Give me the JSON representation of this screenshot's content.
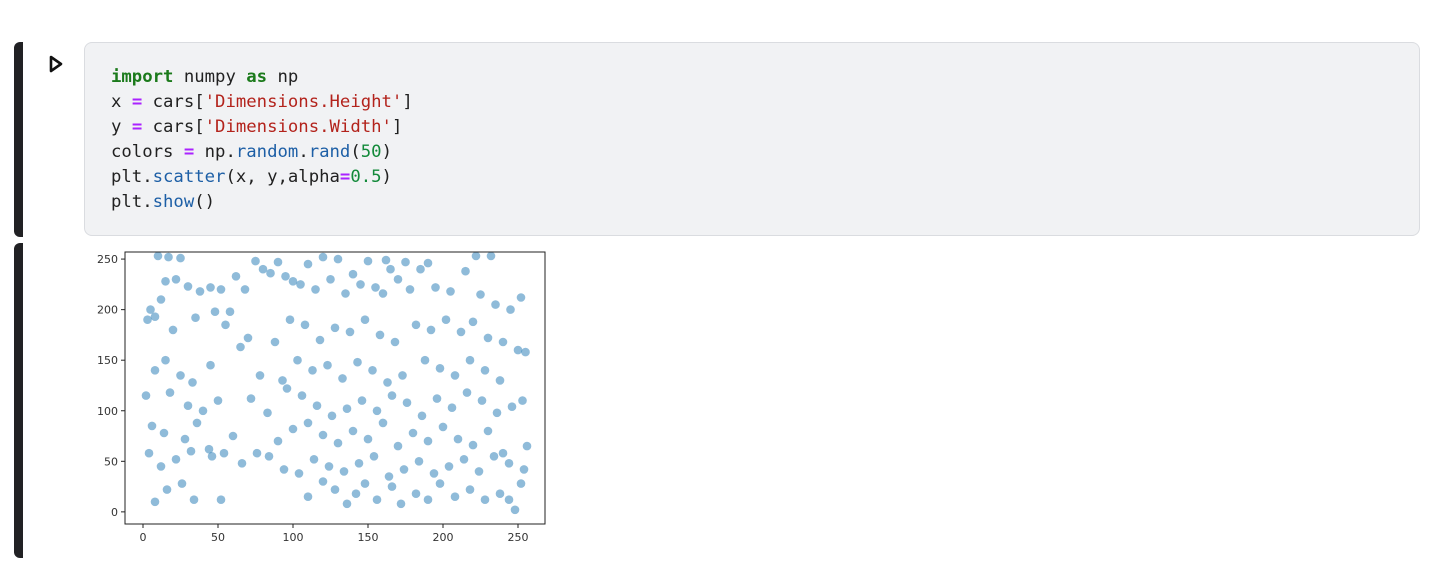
{
  "code_cell": {
    "run_icon": "play-triangle-icon",
    "lines": [
      {
        "tokens": [
          {
            "t": "import",
            "k": "kw"
          },
          {
            "t": " numpy ",
            "k": ""
          },
          {
            "t": "as",
            "k": "kw"
          },
          {
            "t": " np",
            "k": ""
          }
        ]
      },
      {
        "tokens": [
          {
            "t": "x ",
            "k": ""
          },
          {
            "t": "=",
            "k": "op"
          },
          {
            "t": " cars[",
            "k": ""
          },
          {
            "t": "'Dimensions.Height'",
            "k": "str"
          },
          {
            "t": "]",
            "k": ""
          }
        ]
      },
      {
        "tokens": [
          {
            "t": "y ",
            "k": ""
          },
          {
            "t": "=",
            "k": "op"
          },
          {
            "t": " cars[",
            "k": ""
          },
          {
            "t": "'Dimensions.Width'",
            "k": "str"
          },
          {
            "t": "]",
            "k": ""
          }
        ]
      },
      {
        "tokens": [
          {
            "t": "colors ",
            "k": ""
          },
          {
            "t": "=",
            "k": "op"
          },
          {
            "t": " np.",
            "k": ""
          },
          {
            "t": "random",
            "k": "fn"
          },
          {
            "t": ".",
            "k": ""
          },
          {
            "t": "rand",
            "k": "fn"
          },
          {
            "t": "(",
            "k": ""
          },
          {
            "t": "50",
            "k": "num"
          },
          {
            "t": ")",
            "k": ""
          }
        ]
      },
      {
        "tokens": [
          {
            "t": "plt.",
            "k": ""
          },
          {
            "t": "scatter",
            "k": "fn"
          },
          {
            "t": "(x, y,alpha",
            "k": ""
          },
          {
            "t": "=",
            "k": "op"
          },
          {
            "t": "0.5",
            "k": "num"
          },
          {
            "t": ")",
            "k": ""
          }
        ]
      },
      {
        "tokens": [
          {
            "t": "plt.",
            "k": ""
          },
          {
            "t": "show",
            "k": "fn"
          },
          {
            "t": "()",
            "k": ""
          }
        ]
      }
    ]
  },
  "chart_data": {
    "type": "scatter",
    "title": "",
    "xlabel": "",
    "ylabel": "",
    "xlim": [
      -12,
      268
    ],
    "ylim": [
      -12,
      257
    ],
    "x_ticks": [
      0,
      50,
      100,
      150,
      200,
      250
    ],
    "y_ticks": [
      0,
      50,
      100,
      150,
      200,
      250
    ],
    "marker_color": "#1f77b4",
    "alpha": 0.5,
    "grid": false,
    "series": [
      {
        "points": [
          [
            10,
            253
          ],
          [
            17,
            252
          ],
          [
            25,
            251
          ],
          [
            75,
            248
          ],
          [
            90,
            247
          ],
          [
            120,
            252
          ],
          [
            130,
            250
          ],
          [
            150,
            248
          ],
          [
            162,
            249
          ],
          [
            175,
            247
          ],
          [
            190,
            246
          ],
          [
            222,
            253
          ],
          [
            232,
            253
          ],
          [
            5,
            200
          ],
          [
            8,
            193
          ],
          [
            12,
            210
          ],
          [
            15,
            228
          ],
          [
            22,
            230
          ],
          [
            30,
            223
          ],
          [
            38,
            218
          ],
          [
            45,
            222
          ],
          [
            52,
            220
          ],
          [
            58,
            198
          ],
          [
            62,
            233
          ],
          [
            68,
            220
          ],
          [
            80,
            240
          ],
          [
            85,
            236
          ],
          [
            95,
            233
          ],
          [
            100,
            228
          ],
          [
            105,
            225
          ],
          [
            110,
            245
          ],
          [
            115,
            220
          ],
          [
            125,
            230
          ],
          [
            135,
            216
          ],
          [
            140,
            235
          ],
          [
            145,
            225
          ],
          [
            155,
            222
          ],
          [
            160,
            216
          ],
          [
            165,
            240
          ],
          [
            170,
            230
          ],
          [
            178,
            220
          ],
          [
            185,
            240
          ],
          [
            195,
            222
          ],
          [
            205,
            218
          ],
          [
            215,
            238
          ],
          [
            225,
            215
          ],
          [
            235,
            205
          ],
          [
            245,
            200
          ],
          [
            252,
            212
          ],
          [
            3,
            190
          ],
          [
            20,
            180
          ],
          [
            35,
            192
          ],
          [
            48,
            198
          ],
          [
            55,
            185
          ],
          [
            70,
            172
          ],
          [
            88,
            168
          ],
          [
            98,
            190
          ],
          [
            108,
            185
          ],
          [
            118,
            170
          ],
          [
            128,
            182
          ],
          [
            138,
            178
          ],
          [
            148,
            190
          ],
          [
            158,
            175
          ],
          [
            168,
            168
          ],
          [
            182,
            185
          ],
          [
            192,
            180
          ],
          [
            202,
            190
          ],
          [
            212,
            178
          ],
          [
            220,
            188
          ],
          [
            230,
            172
          ],
          [
            240,
            168
          ],
          [
            250,
            160
          ],
          [
            8,
            140
          ],
          [
            15,
            150
          ],
          [
            25,
            135
          ],
          [
            33,
            128
          ],
          [
            45,
            145
          ],
          [
            65,
            163
          ],
          [
            78,
            135
          ],
          [
            93,
            130
          ],
          [
            103,
            150
          ],
          [
            113,
            140
          ],
          [
            123,
            145
          ],
          [
            133,
            132
          ],
          [
            143,
            148
          ],
          [
            153,
            140
          ],
          [
            163,
            128
          ],
          [
            173,
            135
          ],
          [
            188,
            150
          ],
          [
            198,
            142
          ],
          [
            208,
            135
          ],
          [
            218,
            150
          ],
          [
            228,
            140
          ],
          [
            238,
            130
          ],
          [
            255,
            158
          ],
          [
            2,
            115
          ],
          [
            18,
            118
          ],
          [
            30,
            105
          ],
          [
            40,
            100
          ],
          [
            50,
            110
          ],
          [
            72,
            112
          ],
          [
            83,
            98
          ],
          [
            96,
            122
          ],
          [
            106,
            115
          ],
          [
            116,
            105
          ],
          [
            126,
            95
          ],
          [
            136,
            102
          ],
          [
            146,
            110
          ],
          [
            156,
            100
          ],
          [
            166,
            115
          ],
          [
            176,
            108
          ],
          [
            186,
            95
          ],
          [
            196,
            112
          ],
          [
            206,
            103
          ],
          [
            216,
            118
          ],
          [
            226,
            110
          ],
          [
            236,
            98
          ],
          [
            246,
            104
          ],
          [
            253,
            110
          ],
          [
            6,
            85
          ],
          [
            14,
            78
          ],
          [
            28,
            72
          ],
          [
            36,
            88
          ],
          [
            44,
            62
          ],
          [
            60,
            75
          ],
          [
            76,
            58
          ],
          [
            90,
            70
          ],
          [
            100,
            82
          ],
          [
            110,
            88
          ],
          [
            120,
            76
          ],
          [
            130,
            68
          ],
          [
            140,
            80
          ],
          [
            150,
            72
          ],
          [
            160,
            88
          ],
          [
            170,
            65
          ],
          [
            180,
            78
          ],
          [
            190,
            70
          ],
          [
            200,
            84
          ],
          [
            210,
            72
          ],
          [
            220,
            66
          ],
          [
            230,
            80
          ],
          [
            240,
            58
          ],
          [
            256,
            65
          ],
          [
            4,
            58
          ],
          [
            12,
            45
          ],
          [
            22,
            52
          ],
          [
            32,
            60
          ],
          [
            46,
            55
          ],
          [
            54,
            58
          ],
          [
            66,
            48
          ],
          [
            84,
            55
          ],
          [
            94,
            42
          ],
          [
            104,
            38
          ],
          [
            114,
            52
          ],
          [
            124,
            45
          ],
          [
            134,
            40
          ],
          [
            144,
            48
          ],
          [
            154,
            55
          ],
          [
            164,
            35
          ],
          [
            174,
            42
          ],
          [
            184,
            50
          ],
          [
            194,
            38
          ],
          [
            204,
            45
          ],
          [
            214,
            52
          ],
          [
            224,
            40
          ],
          [
            234,
            55
          ],
          [
            244,
            48
          ],
          [
            254,
            42
          ],
          [
            8,
            10
          ],
          [
            16,
            22
          ],
          [
            26,
            28
          ],
          [
            34,
            12
          ],
          [
            52,
            12
          ],
          [
            110,
            15
          ],
          [
            120,
            30
          ],
          [
            128,
            22
          ],
          [
            136,
            8
          ],
          [
            142,
            18
          ],
          [
            148,
            28
          ],
          [
            156,
            12
          ],
          [
            166,
            25
          ],
          [
            172,
            8
          ],
          [
            182,
            18
          ],
          [
            190,
            12
          ],
          [
            198,
            28
          ],
          [
            208,
            15
          ],
          [
            218,
            22
          ],
          [
            228,
            12
          ],
          [
            238,
            18
          ],
          [
            244,
            12
          ],
          [
            248,
            2
          ],
          [
            252,
            28
          ]
        ]
      }
    ]
  }
}
